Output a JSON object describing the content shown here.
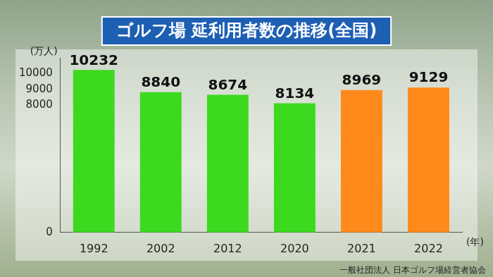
{
  "chart_data": {
    "type": "bar",
    "title": "ゴルフ場 延利用者数の推移(全国)",
    "ylabel": "(万人)",
    "xlabel": "(年)",
    "annotations": [
      "一般社団法人 日本ゴルフ場経営者協会"
    ],
    "categories": [
      "1992",
      "2002",
      "2012",
      "2020",
      "2021",
      "2022"
    ],
    "values": [
      10232,
      8840,
      8674,
      8134,
      8969,
      9129
    ],
    "colors": [
      "#3cd91f",
      "#3cd91f",
      "#3cd91f",
      "#3cd91f",
      "#ff8a1c",
      "#ff8a1c"
    ],
    "ylim": [
      0,
      11000
    ],
    "yticks": [
      0,
      8000,
      9000,
      10000
    ],
    "grid": false,
    "data_labels": true
  }
}
